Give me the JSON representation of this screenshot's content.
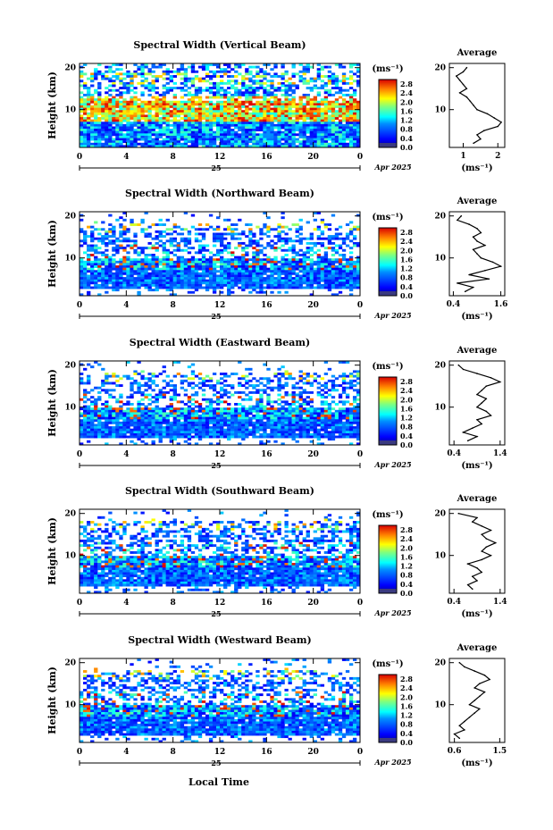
{
  "figure": {
    "date_label": "Apr 2025",
    "xlabel_bottom": "Local Time",
    "ylabel": "Height (km)",
    "colorbar_unit": "(ms⁻¹)",
    "avg_title": "Average",
    "avg_xlabel": "(ms⁻¹)"
  },
  "chart_data": [
    {
      "type": "heatmap",
      "title": "Spectral Width (Vertical Beam)",
      "x_ticks": [
        "0",
        "4",
        "8",
        "12",
        "16",
        "20",
        "0"
      ],
      "day_label": "25",
      "y_ticks": [
        "20",
        "10"
      ],
      "xlim": [
        0,
        24
      ],
      "ylim": [
        1,
        21
      ],
      "colorbar": {
        "ticks": [
          "2.8",
          "2.4",
          "2.0",
          "1.6",
          "1.2",
          "0.8",
          "0.4",
          "0.0"
        ],
        "range": [
          0,
          3.0
        ]
      },
      "profile": {
        "xlim": [
          0.6,
          2.2
        ],
        "x_ticks": [
          "1",
          "2"
        ],
        "x_tick_values": [
          1,
          2
        ],
        "heights": [
          20,
          19,
          18,
          17,
          16,
          15,
          14,
          13,
          12,
          11,
          10,
          9,
          8,
          7,
          6,
          5,
          4,
          3,
          2
        ],
        "values": [
          1.1,
          1.0,
          0.8,
          0.9,
          1.0,
          1.1,
          0.9,
          1.1,
          1.2,
          1.3,
          1.4,
          1.7,
          1.9,
          2.1,
          2.0,
          1.6,
          1.4,
          1.5,
          1.3
        ]
      }
    },
    {
      "type": "heatmap",
      "title": "Spectral Width (Northward Beam)",
      "x_ticks": [
        "0",
        "4",
        "8",
        "12",
        "16",
        "20",
        "0"
      ],
      "day_label": "25",
      "y_ticks": [
        "20",
        "10"
      ],
      "xlim": [
        0,
        24
      ],
      "ylim": [
        1,
        21
      ],
      "colorbar": {
        "ticks": [
          "2.8",
          "2.4",
          "2.0",
          "1.6",
          "1.2",
          "0.8",
          "0.4",
          "0.0"
        ],
        "range": [
          0,
          3.0
        ]
      },
      "profile": {
        "xlim": [
          0.3,
          1.7
        ],
        "x_ticks": [
          "0.4",
          "1.6"
        ],
        "x_tick_values": [
          0.4,
          1.6
        ],
        "heights": [
          20,
          19,
          18,
          17,
          16,
          15,
          14,
          13,
          12,
          11,
          10,
          9,
          8,
          7,
          6,
          5,
          4,
          3,
          2
        ],
        "values": [
          0.6,
          0.5,
          0.8,
          1.0,
          1.1,
          0.9,
          1.0,
          1.2,
          0.9,
          1.0,
          1.1,
          1.4,
          1.6,
          1.2,
          0.8,
          1.3,
          0.5,
          0.9,
          0.7
        ]
      }
    },
    {
      "type": "heatmap",
      "title": "Spectral Width (Eastward Beam)",
      "x_ticks": [
        "0",
        "4",
        "8",
        "12",
        "16",
        "20",
        "0"
      ],
      "day_label": "25",
      "y_ticks": [
        "20",
        "10"
      ],
      "xlim": [
        0,
        24
      ],
      "ylim": [
        1,
        21
      ],
      "colorbar": {
        "ticks": [
          "2.8",
          "2.4",
          "2.0",
          "1.6",
          "1.2",
          "0.8",
          "0.4",
          "0.0"
        ],
        "range": [
          0,
          3.0
        ]
      },
      "profile": {
        "xlim": [
          0.3,
          1.5
        ],
        "x_ticks": [
          "0.4",
          "1.4"
        ],
        "x_tick_values": [
          0.4,
          1.4
        ],
        "heights": [
          20,
          19,
          18,
          17,
          16,
          15,
          14,
          13,
          12,
          11,
          10,
          9,
          8,
          7,
          6,
          5,
          4,
          3,
          2
        ],
        "values": [
          0.5,
          0.6,
          0.9,
          1.2,
          1.4,
          1.1,
          1.0,
          0.9,
          1.1,
          1.0,
          0.9,
          1.1,
          1.2,
          0.9,
          1.0,
          0.8,
          0.6,
          0.9,
          0.7
        ]
      }
    },
    {
      "type": "heatmap",
      "title": "Spectral Width (Southward Beam)",
      "x_ticks": [
        "0",
        "4",
        "8",
        "12",
        "16",
        "20",
        "0"
      ],
      "day_label": "25",
      "y_ticks": [
        "20",
        "10"
      ],
      "xlim": [
        0,
        24
      ],
      "ylim": [
        1,
        21
      ],
      "colorbar": {
        "ticks": [
          "2.8",
          "2.4",
          "2.0",
          "1.6",
          "1.2",
          "0.8",
          "0.4",
          "0.0"
        ],
        "range": [
          0,
          3.0
        ]
      },
      "profile": {
        "xlim": [
          0.3,
          1.5
        ],
        "x_ticks": [
          "0.4",
          "1.4"
        ],
        "x_tick_values": [
          0.4,
          1.4
        ],
        "heights": [
          20,
          19,
          18,
          17,
          16,
          15,
          14,
          13,
          12,
          11,
          10,
          9,
          8,
          7,
          6,
          5,
          4,
          3,
          2
        ],
        "values": [
          0.5,
          0.9,
          0.8,
          1.0,
          1.2,
          1.0,
          1.1,
          1.3,
          1.1,
          1.0,
          1.2,
          1.0,
          0.7,
          0.9,
          1.0,
          0.8,
          0.9,
          0.7,
          0.8
        ]
      }
    },
    {
      "type": "heatmap",
      "title": "Spectral Width (Westward Beam)",
      "x_ticks": [
        "0",
        "4",
        "8",
        "12",
        "16",
        "20",
        "0"
      ],
      "day_label": "25",
      "y_ticks": [
        "20",
        "10"
      ],
      "xlim": [
        0,
        24
      ],
      "ylim": [
        1,
        21
      ],
      "colorbar": {
        "ticks": [
          "2.8",
          "2.4",
          "2.0",
          "1.6",
          "1.2",
          "0.8",
          "0.4",
          "0.0"
        ],
        "range": [
          0,
          3.0
        ]
      },
      "profile": {
        "xlim": [
          0.5,
          1.6
        ],
        "x_ticks": [
          "0.6",
          "1.5"
        ],
        "x_tick_values": [
          0.6,
          1.5
        ],
        "heights": [
          20,
          19,
          18,
          17,
          16,
          15,
          14,
          13,
          12,
          11,
          10,
          9,
          8,
          7,
          6,
          5,
          4,
          3,
          2
        ],
        "values": [
          0.7,
          0.8,
          1.0,
          1.2,
          1.3,
          1.1,
          1.0,
          1.2,
          1.1,
          1.0,
          0.9,
          1.1,
          1.0,
          0.9,
          0.8,
          0.7,
          0.8,
          0.6,
          0.7
        ]
      }
    }
  ]
}
